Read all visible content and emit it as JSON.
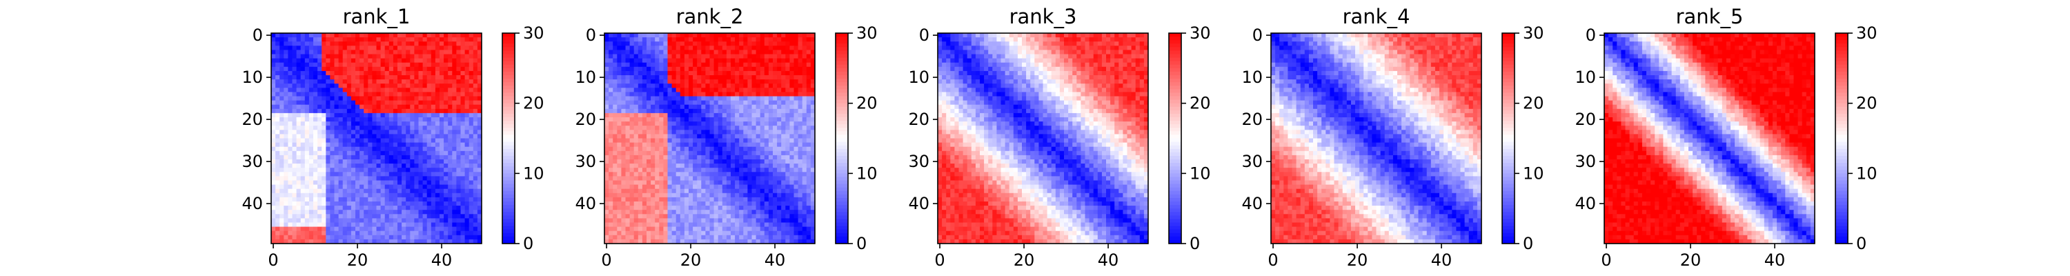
{
  "chart_data": [
    {
      "type": "heatmap",
      "title": "rank_1",
      "matrix_size": [
        50,
        50
      ],
      "xticks": [
        0,
        20,
        40
      ],
      "yticks": [
        0,
        10,
        20,
        30,
        40
      ],
      "colorbar": {
        "min": 0,
        "max": 30,
        "ticks": [
          0,
          10,
          20,
          30
        ],
        "colormap": "bwr"
      },
      "structure": {
        "diag_value": 1,
        "near_slope": 0.45,
        "upper_right_block": {
          "rows": [
            0,
            18
          ],
          "cols": [
            12,
            49
          ],
          "value": 28
        },
        "lower_left_columns": {
          "cols": [
            0,
            12
          ],
          "value": 14
        },
        "bottom_rows": {
          "rows": [
            46,
            49
          ],
          "cols": [
            0,
            12
          ],
          "value": 24
        },
        "far_value": 7
      }
    },
    {
      "type": "heatmap",
      "title": "rank_2",
      "matrix_size": [
        50,
        50
      ],
      "xticks": [
        0,
        20,
        40
      ],
      "yticks": [
        0,
        10,
        20,
        30,
        40
      ],
      "colorbar": {
        "min": 0,
        "max": 30,
        "ticks": [
          0,
          10,
          20,
          30
        ],
        "colormap": "bwr"
      },
      "structure": {
        "diag_value": 1,
        "near_slope": 0.6,
        "upper_right_block": {
          "rows": [
            0,
            14
          ],
          "cols": [
            15,
            49
          ],
          "value": 29
        },
        "lower_left_columns": {
          "cols": [
            0,
            14
          ],
          "value": 22
        },
        "far_value": 9
      }
    },
    {
      "type": "heatmap",
      "title": "rank_3",
      "matrix_size": [
        50,
        50
      ],
      "xticks": [
        0,
        20,
        40
      ],
      "yticks": [
        0,
        10,
        20,
        30,
        40
      ],
      "colorbar": {
        "min": 0,
        "max": 30,
        "ticks": [
          0,
          10,
          20,
          30
        ],
        "colormap": "bwr"
      },
      "structure": {
        "diag_value": 1,
        "near_slope": 0.9,
        "far_value": 27
      }
    },
    {
      "type": "heatmap",
      "title": "rank_4",
      "matrix_size": [
        50,
        50
      ],
      "xticks": [
        0,
        20,
        40
      ],
      "yticks": [
        0,
        10,
        20,
        30,
        40
      ],
      "colorbar": {
        "min": 0,
        "max": 30,
        "ticks": [
          0,
          10,
          20,
          30
        ],
        "colormap": "bwr"
      },
      "structure": {
        "diag_value": 1,
        "near_slope": 0.8,
        "far_value": 26
      }
    },
    {
      "type": "heatmap",
      "title": "rank_5",
      "matrix_size": [
        50,
        50
      ],
      "xticks": [
        0,
        20,
        40
      ],
      "yticks": [
        0,
        10,
        20,
        30,
        40
      ],
      "colorbar": {
        "min": 0,
        "max": 30,
        "ticks": [
          0,
          10,
          20,
          30
        ],
        "colormap": "bwr"
      },
      "structure": {
        "diag_value": 1,
        "near_slope": 1.5,
        "far_value": 30
      }
    }
  ]
}
